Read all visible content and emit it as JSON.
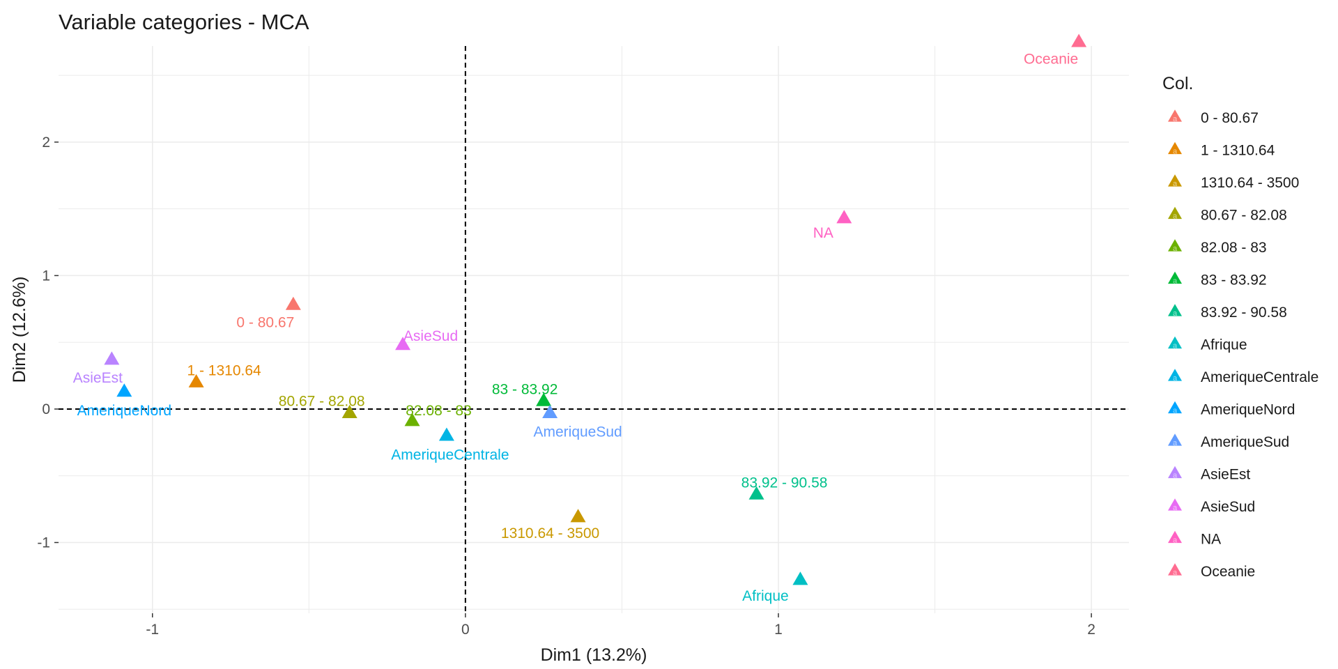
{
  "chart_data": {
    "type": "scatter",
    "title": "Variable categories - MCA",
    "xlabel": "Dim1 (13.2%)",
    "ylabel": "Dim2 (12.6%)",
    "xlim": [
      -1.3,
      2.12
    ],
    "ylim": [
      -1.53,
      2.72
    ],
    "x_ticks": [
      -1,
      0,
      1,
      2
    ],
    "x_tick_labels": [
      "-1",
      "0",
      "1",
      "2"
    ],
    "y_ticks": [
      -1,
      0,
      1,
      2
    ],
    "y_tick_labels": [
      "-1",
      "0",
      "1",
      "2"
    ],
    "grid": true,
    "reference_lines": {
      "x": 0,
      "y": 0,
      "style": "dashed"
    },
    "legend": {
      "title": "Col.",
      "position": "right",
      "entries": [
        "0 - 80.67",
        "1 - 1310.64",
        "1310.64 - 3500",
        "80.67 - 82.08",
        "82.08 - 83",
        "83 - 83.92",
        "83.92 - 90.58",
        "Afrique",
        "AmeriqueCentrale",
        "AmeriqueNord",
        "AmeriqueSud",
        "AsieEst",
        "AsieSud",
        "NA",
        "Oceanie"
      ]
    },
    "colors": {
      "0 - 80.67": "#F8766D",
      "1 - 1310.64": "#E58700",
      "1310.64 - 3500": "#C99800",
      "80.67 - 82.08": "#A3A500",
      "82.08 - 83": "#6BB100",
      "83 - 83.92": "#00BA38",
      "83.92 - 90.58": "#00C08B",
      "Afrique": "#00BFC4",
      "AmeriqueCentrale": "#00B4E4",
      "AmeriqueNord": "#00A5FF",
      "AmeriqueSud": "#619CFF",
      "AsieEst": "#B983FF",
      "AsieSud": "#E76BF3",
      "NA": "#FF61C3",
      "Oceanie": "#FF6C91"
    },
    "points": [
      {
        "label": "0 - 80.67",
        "x": -0.55,
        "y": 0.78
      },
      {
        "label": "1 - 1310.64",
        "x": -0.86,
        "y": 0.2
      },
      {
        "label": "1310.64 - 3500",
        "x": 0.36,
        "y": -0.81
      },
      {
        "label": "80.67 - 82.08",
        "x": -0.37,
        "y": -0.03
      },
      {
        "label": "82.08 - 83",
        "x": -0.17,
        "y": -0.09
      },
      {
        "label": "83 - 83.92",
        "x": 0.25,
        "y": 0.06
      },
      {
        "label": "83.92 - 90.58",
        "x": 0.93,
        "y": -0.64
      },
      {
        "label": "Afrique",
        "x": 1.07,
        "y": -1.28
      },
      {
        "label": "AmeriqueCentrale",
        "x": -0.06,
        "y": -0.2
      },
      {
        "label": "AmeriqueNord",
        "x": -1.09,
        "y": 0.13
      },
      {
        "label": "AmeriqueSud",
        "x": 0.27,
        "y": -0.03
      },
      {
        "label": "AsieEst",
        "x": -1.13,
        "y": 0.37
      },
      {
        "label": "AsieSud",
        "x": -0.2,
        "y": 0.48
      },
      {
        "label": "NA",
        "x": 1.21,
        "y": 1.43
      },
      {
        "label": "Oceanie",
        "x": 1.96,
        "y": 2.75
      }
    ]
  }
}
